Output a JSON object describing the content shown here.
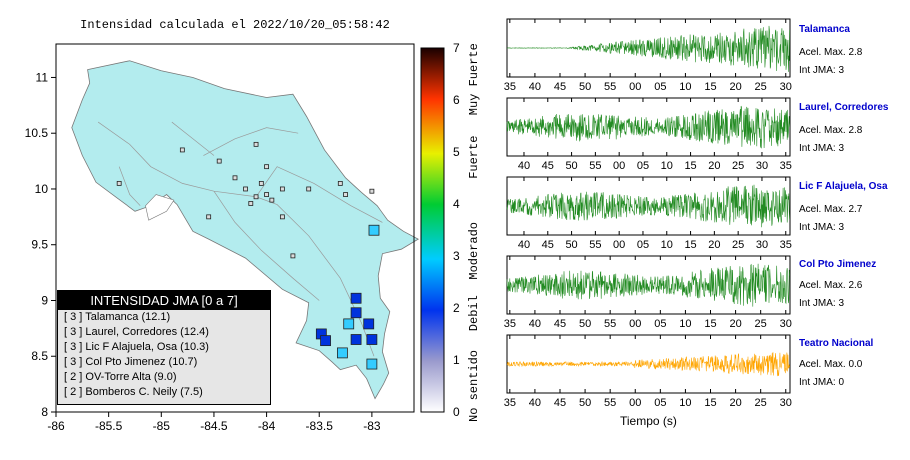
{
  "map": {
    "title": "Intensidad calculada el 2022/10/20_05:58:42",
    "x_ticks": [
      "-86",
      "-85.5",
      "-85",
      "-84.5",
      "-84",
      "-83.5",
      "-83"
    ],
    "y_ticks": [
      "11",
      "10.5",
      "10",
      "9.5",
      "9",
      "8.5",
      "8"
    ],
    "colorbar_ticks": [
      "0",
      "1",
      "2",
      "3",
      "4",
      "5",
      "6",
      "7"
    ],
    "colorbar_labels": [
      "No sentido",
      "Debil",
      "Moderado",
      "Fuerte",
      "Muy Fuerte"
    ],
    "legend": {
      "title": "INTENSIDAD JMA [0 a 7]",
      "rows": [
        "[ 3 ]  Talamanca (12.1)",
        "[ 3 ]  Laurel, Corredores (12.4)",
        "[ 3 ]  Lic F Alajuela, Osa (10.3)",
        "[ 3 ]  Col Pto Jimenez (10.7)",
        "[ 2 ]  OV-Torre Alta (9.0)",
        "[ 2 ]  Bomberos C. Neily (7.5)"
      ]
    },
    "colors": {
      "land": "#b3ecee",
      "sea": "#ffffff",
      "roads": "#9a9a9a"
    },
    "stations": [
      {
        "lon": -82.98,
        "lat": 9.63,
        "int": 3
      },
      {
        "lon": -83.15,
        "lat": 9.02,
        "int": 2
      },
      {
        "lon": -83.15,
        "lat": 8.89,
        "int": 2
      },
      {
        "lon": -83.03,
        "lat": 8.79,
        "int": 2
      },
      {
        "lon": -83.22,
        "lat": 8.79,
        "int": 3
      },
      {
        "lon": -83.48,
        "lat": 8.7,
        "int": 2
      },
      {
        "lon": -83.44,
        "lat": 8.64,
        "int": 2
      },
      {
        "lon": -83.15,
        "lat": 8.65,
        "int": 2
      },
      {
        "lon": -83.0,
        "lat": 8.65,
        "int": 2
      },
      {
        "lon": -83.28,
        "lat": 8.53,
        "int": 3
      },
      {
        "lon": -83.0,
        "lat": 8.43,
        "int": 3
      }
    ]
  },
  "waveforms": [
    {
      "name": "Talamanca",
      "acel": "Acel. Max. 2.8",
      "int": "Int JMA: 3",
      "ticks": [
        "35",
        "40",
        "45",
        "50",
        "55",
        "00",
        "05",
        "10",
        "15",
        "20",
        "25",
        "30"
      ],
      "color": "#228b22",
      "onset": 0.2
    },
    {
      "name": "Laurel, Corredores",
      "acel": "Acel. Max. 2.8",
      "int": "Int JMA: 3",
      "ticks": [
        "40",
        "45",
        "50",
        "55",
        "00",
        "05",
        "10",
        "15",
        "20",
        "25",
        "30",
        "35"
      ],
      "color": "#228b22",
      "onset": 0.0
    },
    {
      "name": "Lic F Alajuela, Osa",
      "acel": "Acel. Max. 2.7",
      "int": "Int JMA: 3",
      "ticks": [
        "40",
        "45",
        "50",
        "55",
        "00",
        "05",
        "10",
        "15",
        "20",
        "25",
        "30",
        "35"
      ],
      "color": "#228b22",
      "onset": 0.0
    },
    {
      "name": "Col Pto Jimenez",
      "acel": "Acel. Max. 2.6",
      "int": "Int JMA: 3",
      "ticks": [
        "35",
        "40",
        "45",
        "50",
        "55",
        "00",
        "05",
        "10",
        "15",
        "20",
        "25",
        "30"
      ],
      "color": "#228b22",
      "onset": 0.0
    },
    {
      "name": "Teatro Nacional",
      "acel": "Acel. Max. 0.0",
      "int": "Int JMA: 0",
      "ticks": [
        "35",
        "40",
        "45",
        "50",
        "55",
        "00",
        "05",
        "10",
        "15",
        "20",
        "25",
        "30"
      ],
      "color": "#ffa500",
      "onset": 0.0
    }
  ],
  "x_axis_title": "Tiempo (s)"
}
